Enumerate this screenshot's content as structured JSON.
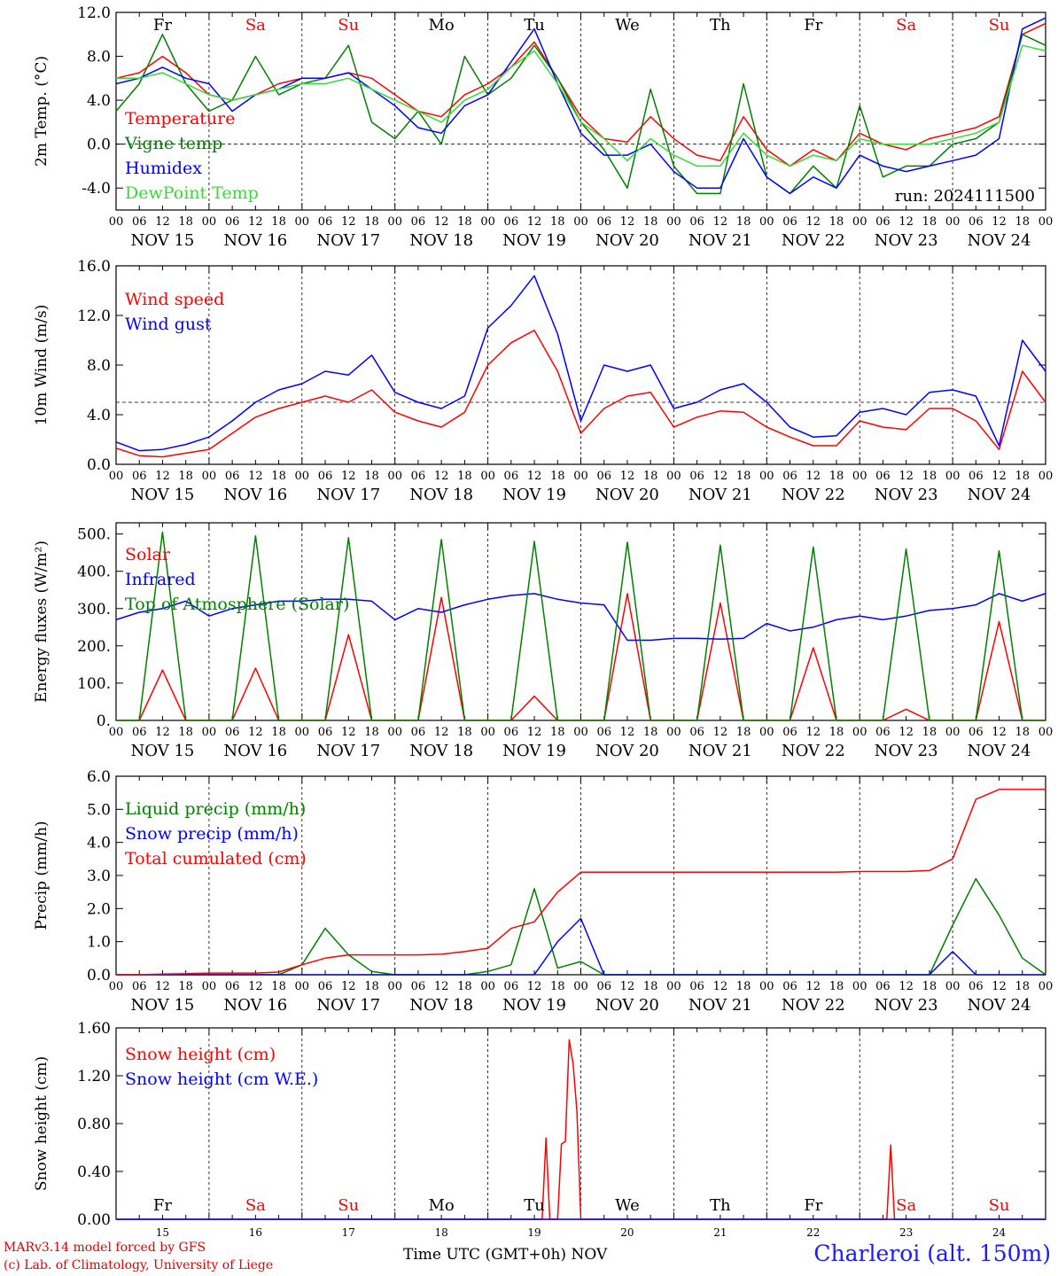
{
  "footer": {
    "credit_line1": "MARv3.14 model forced by GFS",
    "credit_line2": "(c) Lab. of Climatology, University of Liege",
    "station": "Charleroi (alt. 150m)",
    "time_label": "Time UTC (GMT+0h) NOV"
  },
  "colors": {
    "red": "#ff0000",
    "green": "#008000",
    "blue": "#0000ff",
    "lightgreen": "#33dd33",
    "weekend": "#ff0000",
    "weekday": "#000000"
  },
  "days": [
    "Fr",
    "Sa",
    "Su",
    "Mo",
    "Tu",
    "We",
    "Th",
    "Fr",
    "Sa",
    "Su"
  ],
  "weekend_days": [
    "Sa",
    "Su"
  ],
  "date_labels": [
    "NOV 15",
    "NOV 16",
    "NOV 17",
    "NOV 18",
    "NOV 19",
    "NOV 20",
    "NOV 21",
    "NOV 22",
    "NOV 23",
    "NOV 24"
  ],
  "day_numbers": [
    "15",
    "16",
    "17",
    "18",
    "19",
    "20",
    "21",
    "22",
    "23",
    "24"
  ],
  "hour_ticks": [
    "00",
    "06",
    "12",
    "18"
  ],
  "run_label": "run: 2024111500",
  "chart_data": [
    {
      "type": "line",
      "ylabel": "2m Temp. (°C)",
      "ylim": [
        -6,
        12
      ],
      "yticks": [
        "12.0",
        "8.0",
        "4.0",
        "0.0",
        "-4.0"
      ],
      "ytick_values": [
        12,
        8,
        4,
        0,
        -4
      ],
      "reference_line": 0,
      "x_hours": [
        0,
        6,
        12,
        18,
        24,
        30,
        36,
        42,
        48,
        54,
        60,
        66,
        72,
        78,
        84,
        90,
        96,
        102,
        108,
        114,
        120,
        126,
        132,
        138,
        144,
        150,
        156,
        162,
        168,
        174,
        180,
        186,
        192,
        198,
        204,
        210,
        216,
        222,
        228,
        234,
        240
      ],
      "series": [
        {
          "name": "Temperature",
          "color": "#ff0000",
          "values": [
            6,
            6.5,
            8,
            6.5,
            4.5,
            4,
            4.5,
            5.5,
            6,
            6,
            6.5,
            6,
            4.5,
            3,
            2.5,
            4.5,
            5.5,
            7,
            9.3,
            6,
            2.5,
            0.5,
            0.2,
            2.5,
            0.5,
            -1,
            -1.5,
            2.5,
            -0.5,
            -2,
            -0.5,
            -1.5,
            1,
            0,
            -0.5,
            0.5,
            1,
            1.5,
            2.5,
            10,
            11
          ]
        },
        {
          "name": "Vigne temp",
          "color": "#008000",
          "values": [
            3,
            5.5,
            10,
            5.5,
            3,
            4,
            8,
            4.5,
            5.5,
            6,
            9,
            2,
            0.5,
            3,
            0,
            8,
            4.5,
            6,
            9,
            6,
            2,
            -0.5,
            -4,
            5,
            -2,
            -4.5,
            -4.5,
            5.5,
            -3,
            -4.5,
            -2,
            -4,
            3.5,
            -3,
            -2,
            -2,
            0,
            0.5,
            2,
            10,
            9
          ]
        },
        {
          "name": "Humidex",
          "color": "#0000ff",
          "values": [
            5.5,
            6,
            7,
            6,
            5.5,
            3,
            4.5,
            5,
            6,
            6,
            6.5,
            5,
            3.5,
            1.5,
            1,
            3.5,
            4.5,
            7.5,
            10.5,
            5.5,
            1,
            -1,
            -1,
            0,
            -2.5,
            -4,
            -4,
            0.5,
            -3,
            -4.5,
            -3,
            -4,
            -1,
            -2,
            -2.5,
            -2,
            -1.5,
            -1,
            0.5,
            10.5,
            11.5
          ]
        },
        {
          "name": "DewPoint Temp",
          "color": "#33dd33",
          "values": [
            6,
            6,
            6.5,
            5.5,
            4.5,
            4,
            4.5,
            5,
            5.5,
            5.5,
            6,
            5,
            4,
            3,
            2,
            4,
            5,
            7,
            8.5,
            5.5,
            2,
            0.5,
            -1.5,
            0.5,
            -1,
            -2,
            -2,
            1,
            -1,
            -2,
            -1,
            -1.5,
            0.5,
            0,
            0,
            0,
            0.5,
            1,
            2,
            9,
            8.5
          ]
        }
      ]
    },
    {
      "type": "line",
      "ylabel": "10m Wind (m/s)",
      "ylim": [
        0,
        16
      ],
      "yticks": [
        "16.0",
        "12.0",
        "8.0",
        "4.0",
        "0.0"
      ],
      "ytick_values": [
        16,
        12,
        8,
        4,
        0
      ],
      "reference_line": 5,
      "x_hours": [
        0,
        6,
        12,
        18,
        24,
        30,
        36,
        42,
        48,
        54,
        60,
        66,
        72,
        78,
        84,
        90,
        96,
        102,
        108,
        114,
        120,
        126,
        132,
        138,
        144,
        150,
        156,
        162,
        168,
        174,
        180,
        186,
        192,
        198,
        204,
        210,
        216,
        222,
        228,
        234,
        240
      ],
      "series": [
        {
          "name": "Wind speed",
          "color": "#ff0000",
          "values": [
            1.3,
            0.7,
            0.6,
            0.9,
            1.2,
            2.5,
            3.8,
            4.5,
            5,
            5.5,
            5,
            6,
            4.2,
            3.5,
            3,
            4.2,
            8,
            9.8,
            10.8,
            7.5,
            2.5,
            4.5,
            5.5,
            5.8,
            3,
            3.8,
            4.3,
            4.2,
            3,
            2.2,
            1.5,
            1.5,
            3.5,
            3,
            2.8,
            4.5,
            4.5,
            3.5,
            1.2,
            7.5,
            5
          ]
        },
        {
          "name": "Wind gust",
          "color": "#0000ff",
          "values": [
            1.8,
            1.1,
            1.2,
            1.6,
            2.2,
            3.5,
            5,
            6,
            6.5,
            7.5,
            7.2,
            8.8,
            5.8,
            5,
            4.5,
            5.5,
            11,
            12.8,
            15.2,
            10.5,
            3.5,
            8,
            7.5,
            8,
            4.5,
            5,
            6,
            6.5,
            5,
            3,
            2.2,
            2.3,
            4.2,
            4.5,
            4,
            5.8,
            6,
            5.5,
            1.5,
            10,
            7.5
          ]
        }
      ]
    },
    {
      "type": "line",
      "ylabel": "Energy fluxes (W/m²)",
      "ylim": [
        0,
        530
      ],
      "yticks": [
        "500.",
        "400.",
        "300.",
        "200.",
        "100.",
        "0."
      ],
      "ytick_values": [
        500,
        400,
        300,
        200,
        100,
        0
      ],
      "x_hours": [
        0,
        6,
        12,
        18,
        24,
        30,
        36,
        42,
        48,
        54,
        60,
        66,
        72,
        78,
        84,
        90,
        96,
        102,
        108,
        114,
        120,
        126,
        132,
        138,
        144,
        150,
        156,
        162,
        168,
        174,
        180,
        186,
        192,
        198,
        204,
        210,
        216,
        222,
        228,
        234,
        240
      ],
      "series": [
        {
          "name": "Solar",
          "color": "#ff0000",
          "values": [
            0,
            0,
            135,
            0,
            0,
            0,
            140,
            0,
            0,
            0,
            230,
            0,
            0,
            0,
            330,
            0,
            0,
            0,
            65,
            0,
            0,
            0,
            340,
            0,
            0,
            0,
            315,
            0,
            0,
            0,
            195,
            0,
            0,
            0,
            30,
            0,
            0,
            0,
            265,
            0,
            0
          ]
        },
        {
          "name": "Infrared",
          "color": "#0000ff",
          "values": [
            270,
            290,
            300,
            320,
            280,
            300,
            310,
            320,
            320,
            325,
            325,
            320,
            270,
            300,
            290,
            310,
            325,
            335,
            340,
            325,
            315,
            310,
            215,
            215,
            220,
            220,
            218,
            220,
            260,
            240,
            250,
            270,
            280,
            270,
            280,
            295,
            300,
            310,
            340,
            320,
            340
          ]
        },
        {
          "name": "Top of Atmosphere (Solar)",
          "color": "#008000",
          "values": [
            0,
            0,
            505,
            0,
            0,
            0,
            495,
            0,
            0,
            0,
            490,
            0,
            0,
            0,
            485,
            0,
            0,
            0,
            480,
            0,
            0,
            0,
            478,
            0,
            0,
            0,
            470,
            0,
            0,
            0,
            465,
            0,
            0,
            0,
            460,
            0,
            0,
            0,
            455,
            0,
            0
          ]
        }
      ]
    },
    {
      "type": "line",
      "ylabel": "Precip (mm/h)",
      "ylim": [
        0,
        6
      ],
      "yticks": [
        "6.0",
        "5.0",
        "4.0",
        "3.0",
        "2.0",
        "1.0",
        "0.0"
      ],
      "ytick_values": [
        6,
        5,
        4,
        3,
        2,
        1,
        0
      ],
      "x_hours": [
        0,
        6,
        12,
        18,
        24,
        30,
        36,
        42,
        48,
        54,
        60,
        66,
        72,
        78,
        84,
        90,
        96,
        102,
        108,
        114,
        120,
        126,
        132,
        138,
        144,
        150,
        156,
        162,
        168,
        174,
        180,
        186,
        192,
        198,
        204,
        210,
        216,
        222,
        228,
        234,
        240
      ],
      "series": [
        {
          "name": "Liquid precip (mm/h)",
          "color": "#008000",
          "values": [
            0,
            0,
            0,
            0,
            0,
            0,
            0,
            0,
            0.3,
            1.4,
            0.6,
            0.1,
            0,
            0,
            0,
            0,
            0.1,
            0.3,
            2.6,
            0.2,
            0.4,
            0,
            0,
            0,
            0,
            0,
            0,
            0,
            0,
            0,
            0,
            0,
            0,
            0,
            0,
            0,
            1.5,
            2.9,
            1.8,
            0.5,
            0
          ]
        },
        {
          "name": "Snow precip (mm/h)",
          "color": "#0000ff",
          "values": [
            0,
            0,
            0,
            0,
            0,
            0,
            0,
            0,
            0,
            0,
            0,
            0,
            0,
            0,
            0,
            0,
            0,
            0,
            0,
            1.0,
            1.7,
            0,
            0,
            0,
            0,
            0,
            0,
            0,
            0,
            0,
            0,
            0,
            0,
            0,
            0,
            0,
            0.7,
            0,
            0,
            0,
            0
          ]
        },
        {
          "name": "Total cumulated (cm)",
          "color": "#ff0000",
          "values": [
            0,
            0,
            0.02,
            0.03,
            0.05,
            0.05,
            0.05,
            0.08,
            0.3,
            0.5,
            0.6,
            0.6,
            0.6,
            0.6,
            0.62,
            0.7,
            0.8,
            1.4,
            1.6,
            2.5,
            3.1,
            3.1,
            3.1,
            3.1,
            3.1,
            3.1,
            3.1,
            3.1,
            3.1,
            3.1,
            3.1,
            3.1,
            3.12,
            3.12,
            3.12,
            3.15,
            3.5,
            5.3,
            5.6,
            5.6,
            5.6
          ]
        }
      ]
    },
    {
      "type": "line",
      "ylabel": "Snow height (cm)",
      "ylim": [
        0,
        1.6
      ],
      "yticks": [
        "1.60",
        "1.20",
        "0.80",
        "0.40",
        "0.00"
      ],
      "ytick_values": [
        1.6,
        1.2,
        0.8,
        0.4,
        0
      ],
      "x_hours": [
        0,
        24,
        48,
        72,
        96,
        108,
        110,
        111,
        112,
        113,
        114,
        115,
        116,
        117,
        118,
        119,
        120,
        121,
        122,
        123,
        144,
        168,
        192,
        199,
        200,
        201,
        202,
        216,
        240
      ],
      "series": [
        {
          "name": "Snow height (cm)",
          "color": "#ff0000",
          "values": [
            0,
            0,
            0,
            0,
            0,
            0,
            0,
            0.68,
            0,
            0,
            0,
            0.63,
            0.65,
            1.5,
            1.3,
            0.9,
            0,
            0,
            0,
            0,
            0,
            0,
            0,
            0,
            0.62,
            0,
            0,
            0,
            0
          ]
        },
        {
          "name": "Snow height (cm W.E.)",
          "color": "#0000ff",
          "values": [
            0,
            0,
            0,
            0,
            0,
            0,
            0,
            0,
            0,
            0,
            0,
            0,
            0,
            0,
            0,
            0,
            0,
            0,
            0,
            0,
            0,
            0,
            0,
            0,
            0,
            0,
            0,
            0,
            0
          ]
        }
      ]
    }
  ]
}
